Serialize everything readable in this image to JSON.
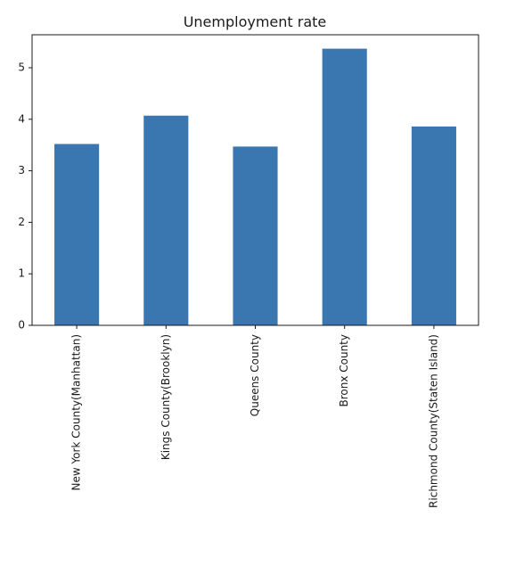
{
  "chart_data": {
    "type": "bar",
    "title": "Unemployment rate",
    "xlabel": "",
    "ylabel": "",
    "categories": [
      "New York County(Manhattan)",
      "Kings County(Brooklyn)",
      "Queens County",
      "Bronx County",
      "Richmond County(Staten Island)"
    ],
    "values": [
      3.52,
      4.07,
      3.47,
      5.37,
      3.86
    ],
    "ylim": [
      0,
      5.64
    ],
    "yticks": [
      0,
      1,
      2,
      3,
      4,
      5
    ],
    "grid": false,
    "legend": "none",
    "bar_color": "#3a76b0",
    "axis_color": "#1a1a1a"
  }
}
